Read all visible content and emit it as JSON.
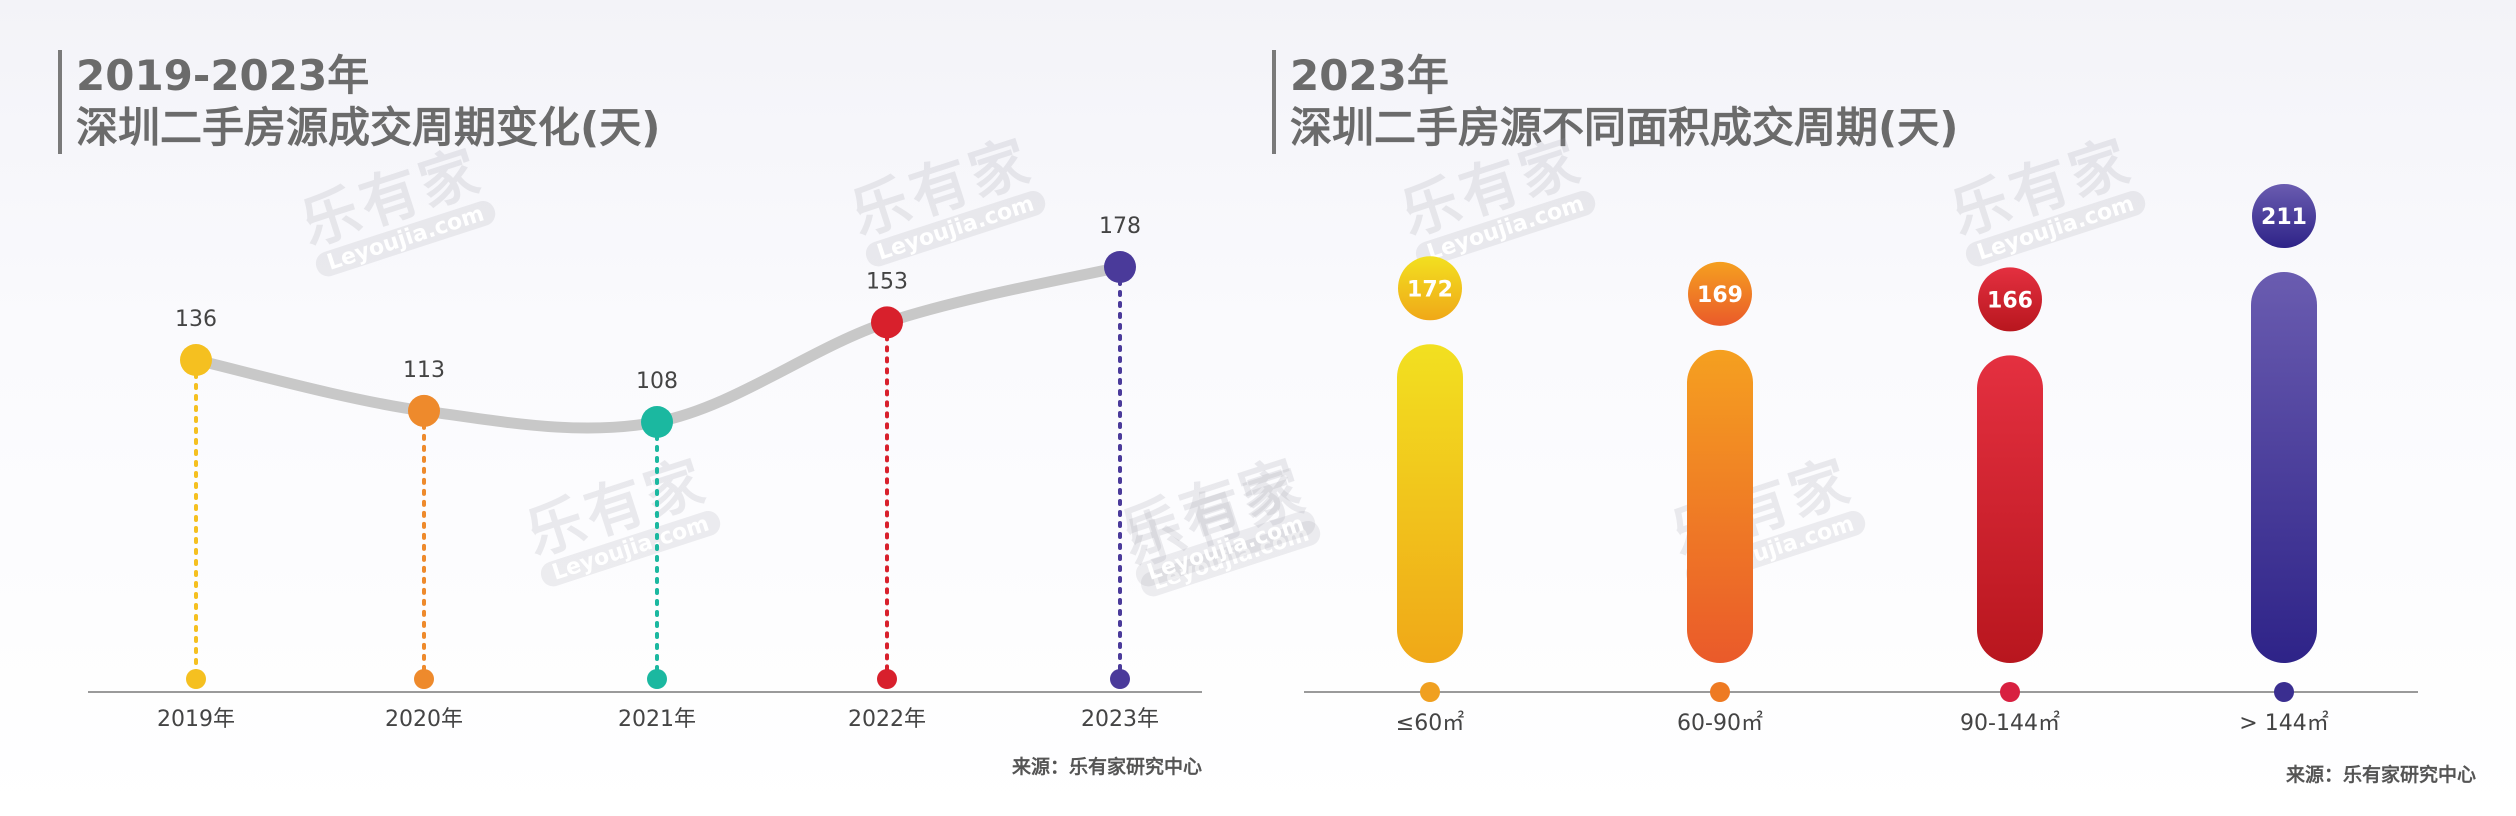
{
  "left": {
    "title_line1": "2019-2023年",
    "title_line2": "深圳二手房源成交周期变化(天)",
    "source": "来源：乐有家研究中心"
  },
  "right": {
    "title_line1": "2023年",
    "title_line2": "深圳二手房源不同面积成交周期(天)",
    "source": "来源：乐有家研究中心"
  },
  "watermark": {
    "main": "乐有家",
    "sub": "Leyoujia.com"
  },
  "colors": {
    "yellow": "#f5c020",
    "orange": "#ee8a2c",
    "teal": "#1bb8a0",
    "red": "#d8202c",
    "purple": "#4a3a9a",
    "line": "#c8c8c8",
    "axis": "#9a9a9a"
  },
  "chart_data": [
    {
      "type": "line",
      "title": "2019-2023年 深圳二手房源成交周期变化(天)",
      "categories": [
        "2019年",
        "2020年",
        "2021年",
        "2022年",
        "2023年"
      ],
      "values": [
        136,
        113,
        108,
        153,
        178
      ],
      "point_colors": [
        "#f5c020",
        "#ee8a2c",
        "#1bb8a0",
        "#d8202c",
        "#4a3a9a"
      ],
      "xlabel": "",
      "ylabel": "",
      "grid": false
    },
    {
      "type": "bar",
      "title": "2023年 深圳二手房源不同面积成交周期(天)",
      "categories": [
        "≤60㎡",
        "60-90㎡",
        "90-144㎡",
        "> 144㎡"
      ],
      "values": [
        172,
        169,
        166,
        211
      ],
      "bar_colors": [
        [
          "#f2e020",
          "#f0a818"
        ],
        [
          "#f5a020",
          "#ea5a2a"
        ],
        [
          "#e43040",
          "#b8161e"
        ],
        [
          "#6a5cb0",
          "#2e2388"
        ]
      ],
      "xlabel": "",
      "ylabel": "",
      "grid": false
    }
  ]
}
